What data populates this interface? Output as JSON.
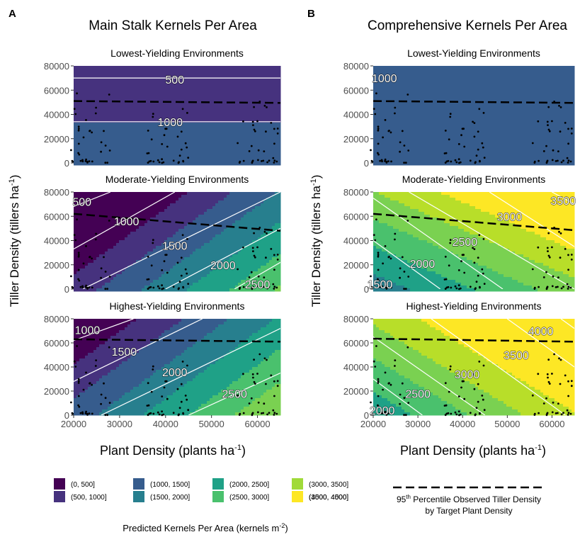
{
  "panel_labels": [
    "A",
    "B"
  ],
  "column_titles": [
    "Main Stalk Kernels Per Area",
    "Comprehensive Kernels Per Area"
  ],
  "row_titles": [
    "Lowest-Yielding Environments",
    "Moderate-Yielding Environments",
    "Highest-Yielding Environments"
  ],
  "y_axis": {
    "label_main": "Tiller Density (tillers ha",
    "label_sup": "-1",
    "label_end": ")",
    "ticks": [
      "0",
      "20000",
      "40000",
      "60000",
      "80000"
    ]
  },
  "x_axis": {
    "label_main": "Plant Density (plants ha",
    "label_sup": "-1",
    "label_end": ")",
    "ticks": [
      "20000",
      "30000",
      "40000",
      "50000",
      "60000"
    ]
  },
  "legend": {
    "title_main": "Predicted Kernels Per Area (kernels m",
    "title_sup": "-2",
    "title_end": ")",
    "items": [
      {
        "label": "(0, 500]",
        "color": "#440154"
      },
      {
        "label": "(500, 1000]",
        "color": "#46327e"
      },
      {
        "label": "(1000, 1500]",
        "color": "#365c8d"
      },
      {
        "label": "(1500, 2000]",
        "color": "#277f8e"
      },
      {
        "label": "(2000, 2500]",
        "color": "#1fa187"
      },
      {
        "label": "(2500, 3000]",
        "color": "#4ac16d"
      },
      {
        "label": "(3000, 3500]",
        "color": "#a0da39"
      },
      {
        "label": "(3500, 4000]",
        "color": "#b8de29"
      },
      {
        "label": "(4000, 4500]",
        "color": "#fde725"
      }
    ],
    "percentile_line1_pre": "95",
    "percentile_line1_sup": "th",
    "percentile_line1_post": " Percentile Observed Tiller Density",
    "percentile_line2": "by Target Plant Density"
  },
  "chart_data": [
    {
      "type": "heatmap",
      "panel": "A",
      "title": "Lowest-Yielding Environments",
      "xlim": [
        20000,
        65000
      ],
      "ylim": [
        0,
        80000
      ],
      "contours": [
        {
          "level": "500",
          "points": [
            [
              20000,
              70000
            ],
            [
              65000,
              70000
            ]
          ]
        },
        {
          "level": "1000",
          "points": [
            [
              20000,
              34000
            ],
            [
              65000,
              34000
            ]
          ]
        }
      ],
      "contour_labels": [
        {
          "text": "500",
          "x": 42000,
          "y": 69000
        },
        {
          "text": "1000",
          "x": 41000,
          "y": 34000
        }
      ],
      "bands": [
        {
          "color": "#46327e",
          "from": 70000,
          "to": 80000
        },
        {
          "color": "#46327e",
          "from": 34000,
          "to": 70000
        },
        {
          "color": "#365c8d",
          "from": 0,
          "to": 34000
        }
      ],
      "percentile_line": [
        [
          20000,
          51000
        ],
        [
          65000,
          49500
        ]
      ]
    },
    {
      "type": "heatmap",
      "panel": "A",
      "title": "Moderate-Yielding Environments",
      "xlim": [
        20000,
        65000
      ],
      "ylim": [
        0,
        80000
      ],
      "contours": [
        {
          "level": "500",
          "points": [
            [
              20000,
              68000
            ],
            [
              28000,
              80000
            ]
          ]
        },
        {
          "level": "1000",
          "points": [
            [
              20000,
              33000
            ],
            [
              42000,
              80000
            ]
          ]
        },
        {
          "level": "1500",
          "points": [
            [
              22000,
              0
            ],
            [
              65000,
              80000
            ]
          ]
        },
        {
          "level": "2000",
          "points": [
            [
              40000,
              0
            ],
            [
              65000,
              50000
            ]
          ]
        },
        {
          "level": "2500",
          "points": [
            [
              55000,
              0
            ],
            [
              65000,
              22000
            ]
          ]
        }
      ],
      "contour_labels": [
        {
          "text": "500",
          "x": 21800,
          "y": 72000
        },
        {
          "text": "1000",
          "x": 31500,
          "y": 56000
        },
        {
          "text": "1500",
          "x": 42000,
          "y": 36000
        },
        {
          "text": "2000",
          "x": 52500,
          "y": 20000
        },
        {
          "text": "2500",
          "x": 60000,
          "y": 4000
        }
      ],
      "percentile_line": [
        [
          20000,
          62000
        ],
        [
          65000,
          48000
        ]
      ]
    },
    {
      "type": "heatmap",
      "panel": "A",
      "title": "Highest-Yielding Environments",
      "xlim": [
        20000,
        65000
      ],
      "ylim": [
        0,
        80000
      ],
      "contours": [
        {
          "level": "1000",
          "points": [
            [
              20000,
              62000
            ],
            [
              33000,
              80000
            ]
          ]
        },
        {
          "level": "1500",
          "points": [
            [
              20000,
              28000
            ],
            [
              48000,
              80000
            ]
          ]
        },
        {
          "level": "2000",
          "points": [
            [
              26000,
              0
            ],
            [
              65000,
              72000
            ]
          ]
        },
        {
          "level": "2500",
          "points": [
            [
              45000,
              0
            ],
            [
              65000,
              35000
            ]
          ]
        }
      ],
      "contour_labels": [
        {
          "text": "1000",
          "x": 23000,
          "y": 71000
        },
        {
          "text": "1500",
          "x": 31000,
          "y": 53000
        },
        {
          "text": "2000",
          "x": 42000,
          "y": 36000
        },
        {
          "text": "2500",
          "x": 55000,
          "y": 18000
        }
      ],
      "percentile_line": [
        [
          20000,
          63000
        ],
        [
          65000,
          61000
        ]
      ]
    },
    {
      "type": "heatmap",
      "panel": "B",
      "title": "Lowest-Yielding Environments",
      "xlim": [
        20000,
        65000
      ],
      "ylim": [
        0,
        80000
      ],
      "contours": [],
      "contour_labels": [
        {
          "text": "1000",
          "x": 22500,
          "y": 70000
        }
      ],
      "percentile_line": [
        [
          20000,
          51000
        ],
        [
          65000,
          49500
        ]
      ]
    },
    {
      "type": "heatmap",
      "panel": "B",
      "title": "Moderate-Yielding Environments",
      "xlim": [
        20000,
        65000
      ],
      "ylim": [
        0,
        80000
      ],
      "contours": [
        {
          "level": "1500",
          "points": [
            [
              20000,
              40000
            ],
            [
              35000,
              0
            ]
          ]
        },
        {
          "level": "2000",
          "points": [
            [
              20000,
              75000
            ],
            [
              49000,
              0
            ]
          ]
        },
        {
          "level": "2500",
          "points": [
            [
              28000,
              80000
            ],
            [
              65000,
              0
            ]
          ]
        },
        {
          "level": "3000",
          "points": [
            [
              46000,
              80000
            ],
            [
              65000,
              35000
            ]
          ]
        },
        {
          "level": "3500",
          "points": [
            [
              60000,
              80000
            ],
            [
              65000,
              70000
            ]
          ]
        }
      ],
      "contour_labels": [
        {
          "text": "1500",
          "x": 21500,
          "y": 4000
        },
        {
          "text": "2000",
          "x": 31000,
          "y": 21000
        },
        {
          "text": "2500",
          "x": 40500,
          "y": 39000
        },
        {
          "text": "3000",
          "x": 50500,
          "y": 60000
        },
        {
          "text": "3500",
          "x": 62500,
          "y": 73000
        }
      ],
      "percentile_line": [
        [
          20000,
          62000
        ],
        [
          65000,
          48500
        ]
      ]
    },
    {
      "type": "heatmap",
      "panel": "B",
      "title": "Highest-Yielding Environments",
      "xlim": [
        20000,
        65000
      ],
      "ylim": [
        0,
        80000
      ],
      "contours": [
        {
          "level": "2000",
          "points": [
            [
              20000,
              30000
            ],
            [
              31000,
              0
            ]
          ]
        },
        {
          "level": "2500",
          "points": [
            [
              20000,
              65000
            ],
            [
              45000,
              0
            ]
          ]
        },
        {
          "level": "3000",
          "points": [
            [
              33000,
              80000
            ],
            [
              63000,
              0
            ]
          ]
        },
        {
          "level": "3500",
          "points": [
            [
              50000,
              80000
            ],
            [
              65000,
              40000
            ]
          ]
        },
        {
          "level": "4000",
          "points": [
            [
              62000,
              80000
            ],
            [
              65000,
              72000
            ]
          ]
        }
      ],
      "contour_labels": [
        {
          "text": "2000",
          "x": 22000,
          "y": 4000
        },
        {
          "text": "2500",
          "x": 30000,
          "y": 18000
        },
        {
          "text": "3000",
          "x": 41000,
          "y": 34000
        },
        {
          "text": "3500",
          "x": 52000,
          "y": 50000
        },
        {
          "text": "4000",
          "x": 57500,
          "y": 70000
        }
      ],
      "percentile_line": [
        [
          20000,
          63500
        ],
        [
          65000,
          61000
        ]
      ]
    }
  ]
}
